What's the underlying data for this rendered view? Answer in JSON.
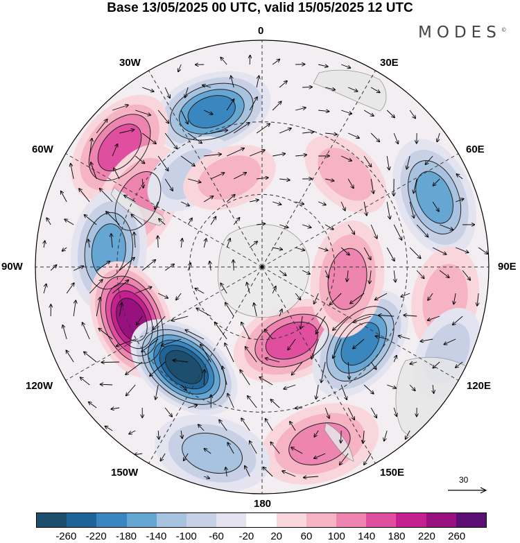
{
  "title": "Base 13/05/2025 00 UTC, valid 15/05/2025 12 UTC",
  "logo": "MODES",
  "logo_mark": "©",
  "longitude_labels": {
    "lon_0": "0",
    "lon_30e": "30E",
    "lon_60e": "60E",
    "lon_90e": "90E",
    "lon_120e": "120E",
    "lon_150e": "150E",
    "lon_180": "180",
    "lon_150w": "150W",
    "lon_120w": "120W",
    "lon_90w": "90W",
    "lon_60w": "60W",
    "lon_30w": "30W"
  },
  "reference_vector": "30",
  "colorbar": {
    "colors": [
      "#1d4e6e",
      "#1f6497",
      "#3a86bf",
      "#65a6d3",
      "#a7c3e0",
      "#c8d0e6",
      "#e3e4f0",
      "#ffffff",
      "#f9d6dc",
      "#f5b3c4",
      "#ee84b0",
      "#e04f9f",
      "#c4208f",
      "#98117f",
      "#5c1073"
    ],
    "tick_labels": [
      "-260",
      "-220",
      "-180",
      "-140",
      "-100",
      "-60",
      "-20",
      "20",
      "60",
      "100",
      "140",
      "180",
      "220",
      "260"
    ]
  },
  "anomaly_centers": [
    {
      "lon": -18,
      "colat": 0.72,
      "value": -180
    },
    {
      "lon": -50,
      "colat": 0.82,
      "value": 160
    },
    {
      "lon": -62,
      "colat": 0.62,
      "value": 120
    },
    {
      "lon": -38,
      "colat": 0.52,
      "value": -60
    },
    {
      "lon": -20,
      "colat": 0.42,
      "value": 60
    },
    {
      "lon": -84,
      "colat": 0.68,
      "value": -140
    },
    {
      "lon": -112,
      "colat": 0.62,
      "value": 240
    },
    {
      "lon": -142,
      "colat": 0.56,
      "value": -260
    },
    {
      "lon": 158,
      "colat": 0.35,
      "value": 160
    },
    {
      "lon": 128,
      "colat": 0.55,
      "value": -180
    },
    {
      "lon": 98,
      "colat": 0.38,
      "value": 100
    },
    {
      "lon": 68,
      "colat": 0.82,
      "value": -140
    },
    {
      "lon": 42,
      "colat": 0.55,
      "value": 60
    },
    {
      "lon": 100,
      "colat": 0.82,
      "value": 80
    },
    {
      "lon": 162,
      "colat": 0.82,
      "value": 120
    },
    {
      "lon": -165,
      "colat": 0.85,
      "value": -100
    },
    {
      "lon": 115,
      "colat": 0.9,
      "value": -60
    }
  ]
}
